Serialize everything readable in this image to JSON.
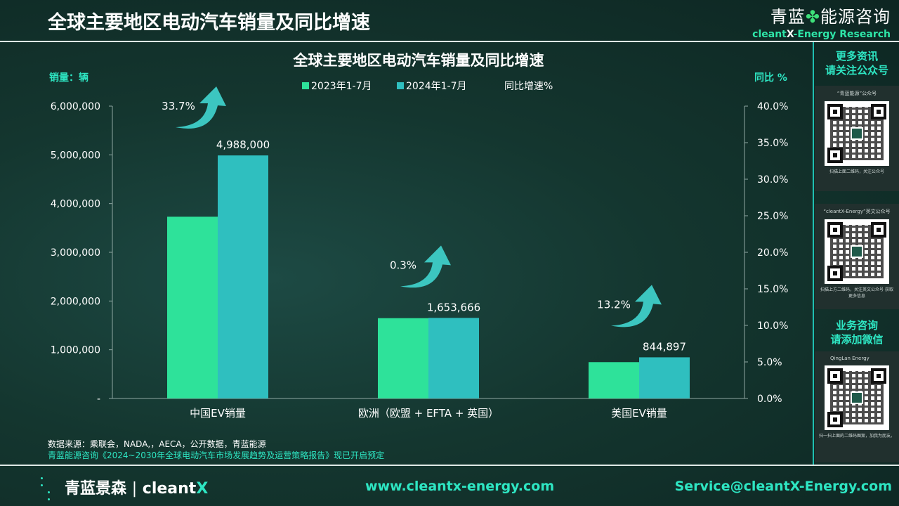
{
  "header": {
    "title": "全球主要地区电动汽车销量及同比增速",
    "brand_cn_left": "青蓝",
    "brand_cn_right": "能源咨询",
    "brand_en_left": "cleant",
    "brand_en_x": "X",
    "brand_en_right": "-Energy Research"
  },
  "chart_data": {
    "type": "bar",
    "title": "全球主要地区电动汽车销量及同比增速",
    "ylabel_left": "销量：辆",
    "ylabel_right": "同比 %",
    "categories": [
      "中国EV销量",
      "欧洲（欧盟 + EFTA + 英国）",
      "美国EV销量"
    ],
    "series": [
      {
        "name": "2023年1-7月",
        "values": [
          3730000,
          1648000,
          746000
        ],
        "color": "#2ee29a"
      },
      {
        "name": "2024年1-7月",
        "values": [
          4988000,
          1653666,
          844897
        ],
        "color": "#2fbfbf"
      }
    ],
    "growth": {
      "name": "同比增速%",
      "values": [
        33.7,
        0.3,
        13.2
      ],
      "labels": [
        "33.7%",
        "0.3%",
        "13.2%"
      ]
    },
    "bar_labels": [
      "4,988,000",
      "1,653,666",
      "844,897"
    ],
    "ylim_left": [
      0,
      6000000
    ],
    "ylim_right": [
      0,
      40
    ],
    "left_ticks": [
      "-",
      "1,000,000",
      "2,000,000",
      "3,000,000",
      "4,000,000",
      "5,000,000",
      "6,000,000"
    ],
    "right_ticks": [
      "0.0%",
      "5.0%",
      "10.0%",
      "15.0%",
      "20.0%",
      "25.0%",
      "30.0%",
      "35.0%",
      "40.0%"
    ],
    "legend_position": "top-center",
    "arrow_color": "#3cc6c0"
  },
  "notes": {
    "source": "数据来源：乘联会，NADA,，AECA，公开数据，青蓝能源",
    "report": "青蓝能源咨询《2024~2030年全球电动汽车市场发展趋势及运营策略报告》现已开启预定"
  },
  "sidebar": {
    "title_top_1": "更多资讯",
    "title_top_2": "请关注公众号",
    "qr1_caption": "“青蓝能源”公众号",
    "qr1_note": "扫描上面二维码，关注公众号",
    "qr2_caption": "“cleantX-Energy”英文公众号",
    "qr2_note": "扫描上方二维码，关注英文公众号 获取更多信息",
    "title_bottom_1": "业务咨询",
    "title_bottom_2": "请添加微信",
    "qr3_caption": "QingLan Energy",
    "qr3_note": "扫一扫上面的二维码图案，加我为朋友。"
  },
  "footer": {
    "logo_cn": "青蓝景森",
    "logo_sep": "|",
    "logo_en": "cleant",
    "logo_x": "X",
    "website": "www.cleantx-energy.com",
    "email": "Service@cleantX-Energy.com"
  }
}
